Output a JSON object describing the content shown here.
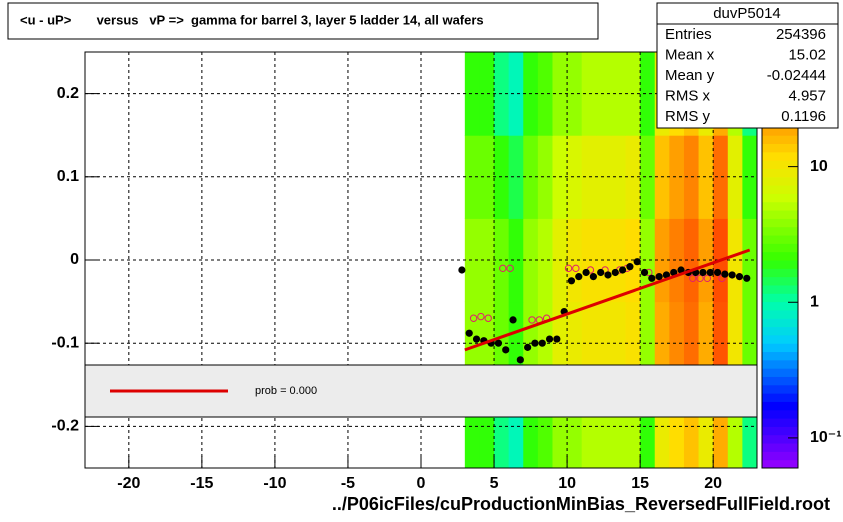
{
  "chart_data": {
    "type": "heatmap-profile",
    "title": "<u - uP>       versus   vP =>  gamma for barrel 3, layer 5 ladder 14, all wafers",
    "x_label": "../P06icFiles/cuProductionMinBias_ReversedFullField.root",
    "xlim": [
      -23,
      23
    ],
    "ylim": [
      -0.25,
      0.25
    ],
    "xticks": [
      -20,
      -15,
      -10,
      -5,
      0,
      5,
      10,
      15,
      20
    ],
    "yticks": [
      0.2,
      0.1,
      0,
      -0.1,
      -0.2
    ],
    "grid": true,
    "log_z": true,
    "zlim": [
      0.06,
      70
    ],
    "zticks": [
      {
        "value": 10,
        "label": "10"
      },
      {
        "value": 1,
        "label": "1"
      },
      {
        "value": 0.1,
        "label": "10⁻¹"
      }
    ],
    "heatmap": {
      "xbins": [
        3,
        4,
        5,
        6,
        7,
        8,
        9,
        10,
        11,
        12,
        13,
        14,
        15,
        16,
        17,
        18,
        19,
        20,
        21,
        22,
        23
      ],
      "ybins": [
        -0.25,
        -0.15,
        -0.05,
        0.05,
        0.15,
        0.25
      ],
      "z": [
        [
          2,
          2,
          1.2,
          0.9,
          2,
          2.5,
          4,
          4,
          5,
          5,
          5,
          5,
          2,
          9,
          12,
          15,
          9,
          18,
          5,
          1.2
        ],
        [
          4,
          4,
          3,
          2,
          4,
          5,
          8,
          9,
          10,
          10,
          10,
          11,
          4,
          18,
          24,
          30,
          18,
          36,
          10,
          3
        ],
        [
          4,
          4,
          3,
          2,
          4,
          5,
          8,
          10,
          11,
          11,
          11,
          12,
          4,
          20,
          26,
          32,
          20,
          38,
          10,
          3
        ],
        [
          3,
          3,
          2,
          1.5,
          3,
          4,
          6,
          7,
          8,
          8,
          8,
          9,
          3,
          15,
          20,
          25,
          15,
          30,
          8,
          2
        ],
        [
          2,
          2,
          1.2,
          0.9,
          2,
          2.5,
          4,
          4,
          5,
          5,
          5,
          5,
          2,
          9,
          12,
          15,
          9,
          18,
          5,
          1.2
        ]
      ]
    },
    "profile": {
      "color": "#000000",
      "x": [
        2.8,
        3.3,
        3.8,
        4.3,
        4.8,
        5.3,
        5.8,
        6.3,
        6.8,
        7.3,
        7.8,
        8.3,
        8.8,
        9.3,
        9.8,
        10.3,
        10.8,
        11.3,
        11.8,
        12.3,
        12.8,
        13.3,
        13.8,
        14.3,
        14.8,
        15.3,
        15.8,
        16.3,
        16.8,
        17.3,
        17.8,
        18.3,
        18.8,
        19.3,
        19.8,
        20.3,
        20.8,
        21.3,
        21.8,
        22.3
      ],
      "y": [
        -0.012,
        -0.088,
        -0.095,
        -0.097,
        -0.1,
        -0.1,
        -0.108,
        -0.072,
        -0.12,
        -0.105,
        -0.1,
        -0.1,
        -0.095,
        -0.095,
        -0.062,
        -0.025,
        -0.02,
        -0.015,
        -0.02,
        -0.015,
        -0.018,
        -0.015,
        -0.012,
        -0.008,
        -0.002,
        -0.015,
        -0.022,
        -0.02,
        -0.018,
        -0.015,
        -0.012,
        -0.015,
        -0.015,
        -0.015,
        -0.015,
        -0.015,
        -0.017,
        -0.018,
        -0.02,
        -0.022
      ]
    },
    "open_points": {
      "color": "#e0206a",
      "x": [
        3.6,
        4.1,
        4.6,
        5.6,
        6.1,
        7.6,
        8.1,
        8.6,
        10.1,
        10.6,
        11.6,
        12.6,
        13.6,
        14.1,
        15.6,
        18.6,
        19.1,
        19.6,
        20.6
      ],
      "y": [
        -0.07,
        -0.068,
        -0.07,
        -0.01,
        -0.01,
        -0.072,
        -0.072,
        -0.07,
        -0.01,
        -0.01,
        -0.012,
        -0.012,
        -0.012,
        -0.01,
        -0.015,
        -0.022,
        -0.022,
        -0.022,
        -0.022
      ]
    },
    "fit_line": {
      "color": "#dd0000",
      "x": [
        3,
        22.5
      ],
      "y": [
        -0.108,
        0.012
      ]
    },
    "legend": {
      "label": "prob = 0.000"
    },
    "stats": {
      "title": "duvP5014",
      "rows": [
        [
          "Entries",
          "254396"
        ],
        [
          "Mean x",
          "15.02"
        ],
        [
          "Mean y",
          "-0.02444"
        ],
        [
          "RMS x",
          "4.957"
        ],
        [
          "RMS y",
          "0.1196"
        ]
      ]
    }
  }
}
